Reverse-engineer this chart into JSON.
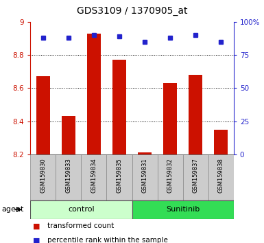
{
  "title": "GDS3109 / 1370905_at",
  "samples": [
    "GSM159830",
    "GSM159833",
    "GSM159834",
    "GSM159835",
    "GSM159831",
    "GSM159832",
    "GSM159837",
    "GSM159838"
  ],
  "bar_values": [
    8.67,
    8.43,
    8.93,
    8.77,
    8.21,
    8.63,
    8.68,
    8.35
  ],
  "bar_base": 8.2,
  "percentile_values": [
    88,
    88,
    90,
    89,
    85,
    88,
    90,
    85
  ],
  "bar_color": "#cc1100",
  "percentile_color": "#2222cc",
  "ylim_left": [
    8.2,
    9.0
  ],
  "ylim_right": [
    0,
    100
  ],
  "yticks_left": [
    8.2,
    8.4,
    8.6,
    8.8,
    9.0
  ],
  "yticks_right": [
    0,
    25,
    50,
    75,
    100
  ],
  "ytick_labels_right": [
    "0",
    "25",
    "50",
    "75",
    "100%"
  ],
  "ytick_labels_left": [
    "8.2",
    "8.4",
    "8.6",
    "8.8",
    "9"
  ],
  "groups": [
    {
      "label": "control",
      "start": 0,
      "end": 4,
      "color": "#ccffcc"
    },
    {
      "label": "Sunitinib",
      "start": 4,
      "end": 8,
      "color": "#33dd55"
    }
  ],
  "agent_label": "agent",
  "legend_bar_label": "transformed count",
  "legend_point_label": "percentile rank within the sample",
  "bg_color": "#ffffff",
  "sample_box_color": "#cccccc",
  "bar_width": 0.55
}
